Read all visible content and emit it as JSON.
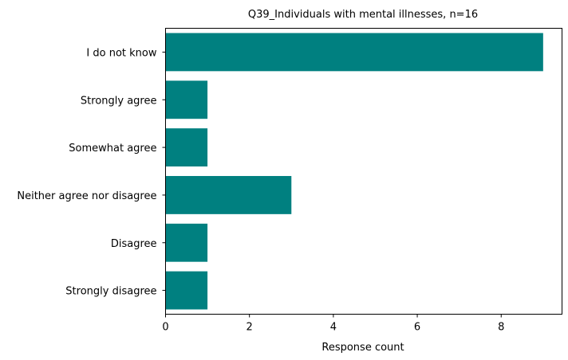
{
  "chart_data": {
    "type": "bar",
    "orientation": "horizontal",
    "title": "Q39_Individuals with mental illnesses, n=16",
    "xlabel": "Response count",
    "ylabel": "",
    "categories": [
      "Strongly disagree",
      "Disagree",
      "Neither agree nor disagree",
      "Somewhat agree",
      "Strongly agree",
      "I do not know"
    ],
    "values": [
      1,
      1,
      3,
      1,
      1,
      9
    ],
    "xlim": [
      0,
      9.45
    ],
    "xticks": [
      0,
      2,
      4,
      6,
      8
    ],
    "grid": false,
    "legend": "none",
    "bar_color": "#008080"
  }
}
